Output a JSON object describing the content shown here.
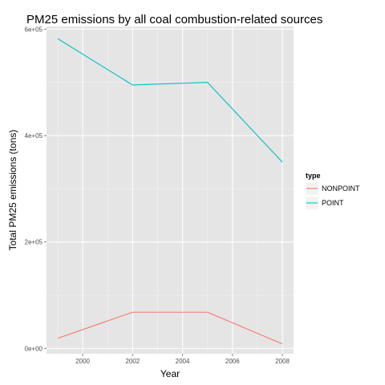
{
  "chart_data": {
    "type": "line",
    "title": "PM25 emissions by all coal combustion-related sources",
    "xlabel": "Year",
    "ylabel": "Total PM25 emissions (tons)",
    "x": [
      1999,
      2002,
      2005,
      2008
    ],
    "x_ticks": [
      2000,
      2002,
      2004,
      2006,
      2008
    ],
    "x_tick_labels": [
      "2000",
      "2002",
      "2004",
      "2006",
      "2008"
    ],
    "xlim": [
      1998.55,
      2008.45
    ],
    "y_ticks": [
      0,
      200000,
      400000,
      600000
    ],
    "y_tick_labels": [
      "0e+00",
      "2e+05",
      "4e+05",
      "6e+05"
    ],
    "ylim": [
      -10000,
      605000
    ],
    "grid": true,
    "background": "#e5e5e5",
    "grid_color": "#ffffff",
    "legend": {
      "title": "type",
      "placement": "right"
    },
    "series": [
      {
        "name": "NONPOINT",
        "color": "#f8766d",
        "values": [
          19000,
          68000,
          68000,
          8500
        ]
      },
      {
        "name": "POINT",
        "color": "#00bfc4",
        "values": [
          582000,
          495000,
          500000,
          350000
        ]
      }
    ]
  }
}
